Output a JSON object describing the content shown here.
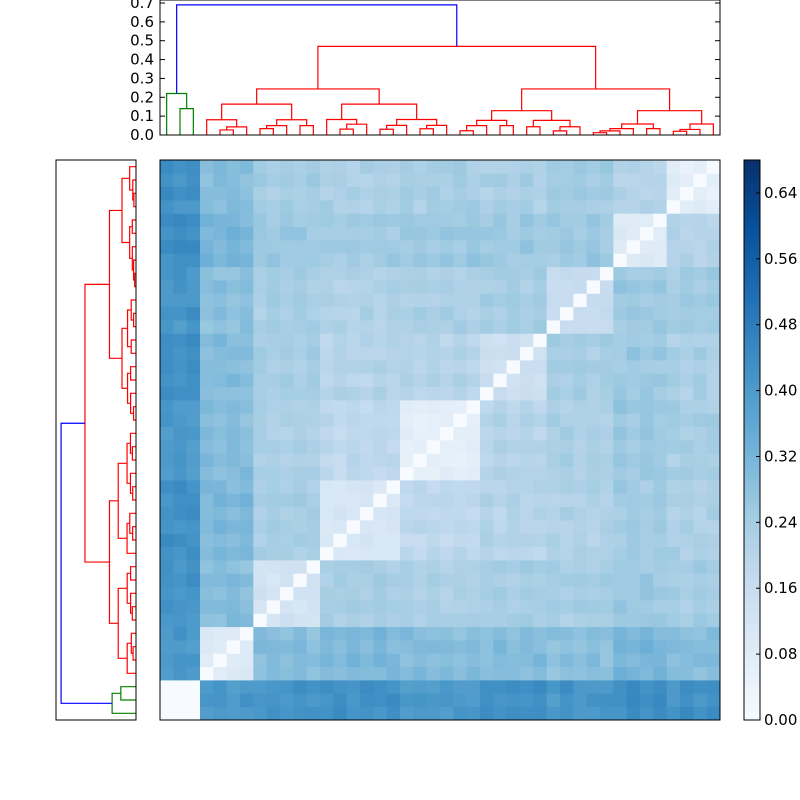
{
  "chart_data": [
    {
      "type": "dendrogram",
      "panel": "top",
      "orientation": "top",
      "ylim": [
        0,
        0.7
      ],
      "yticks": [
        "0.0",
        "0.1",
        "0.2",
        "0.3",
        "0.4",
        "0.5",
        "0.6",
        "0.7"
      ],
      "clusters": [
        {
          "color": "#008000",
          "members": "first 3 leaves",
          "merge_height": 0.22
        },
        {
          "color": "#ff0000",
          "members": "remaining leaves",
          "merge_height": 0.47
        },
        {
          "color": "#0000ff",
          "members": "root link",
          "merge_height": 0.69
        }
      ]
    },
    {
      "type": "dendrogram",
      "panel": "left",
      "orientation": "left",
      "clusters": [
        {
          "color": "#008000",
          "members": "first 3 leaves"
        },
        {
          "color": "#ff0000",
          "members": "remaining leaves"
        },
        {
          "color": "#0000ff",
          "members": "root link"
        }
      ]
    },
    {
      "type": "heatmap",
      "rows": 42,
      "cols": 42,
      "colormap": "Blues",
      "vmin": 0.0,
      "vmax": 0.68,
      "colorbar_ticks": [
        "0.00",
        "0.08",
        "0.16",
        "0.24",
        "0.32",
        "0.40",
        "0.48",
        "0.56",
        "0.64"
      ],
      "diagonal_value": 0.0,
      "block_means": [
        [
          0.0,
          0.42,
          0.43,
          0.44,
          0.42,
          0.44,
          0.43,
          0.45,
          0.44
        ],
        [
          0.42,
          0.1,
          0.31,
          0.32,
          0.31,
          0.31,
          0.3,
          0.33,
          0.31
        ],
        [
          0.43,
          0.31,
          0.14,
          0.25,
          0.24,
          0.25,
          0.25,
          0.27,
          0.25
        ],
        [
          0.44,
          0.32,
          0.25,
          0.12,
          0.2,
          0.22,
          0.23,
          0.26,
          0.24
        ],
        [
          0.42,
          0.31,
          0.24,
          0.2,
          0.08,
          0.22,
          0.24,
          0.27,
          0.25
        ],
        [
          0.44,
          0.31,
          0.25,
          0.22,
          0.22,
          0.16,
          0.25,
          0.27,
          0.24
        ],
        [
          0.43,
          0.3,
          0.25,
          0.23,
          0.24,
          0.25,
          0.18,
          0.27,
          0.26
        ],
        [
          0.45,
          0.33,
          0.27,
          0.26,
          0.27,
          0.27,
          0.27,
          0.1,
          0.22
        ],
        [
          0.44,
          0.31,
          0.25,
          0.24,
          0.25,
          0.24,
          0.26,
          0.22,
          0.08
        ]
      ],
      "block_sizes": [
        3,
        4,
        5,
        6,
        6,
        5,
        5,
        4,
        4
      ]
    }
  ]
}
